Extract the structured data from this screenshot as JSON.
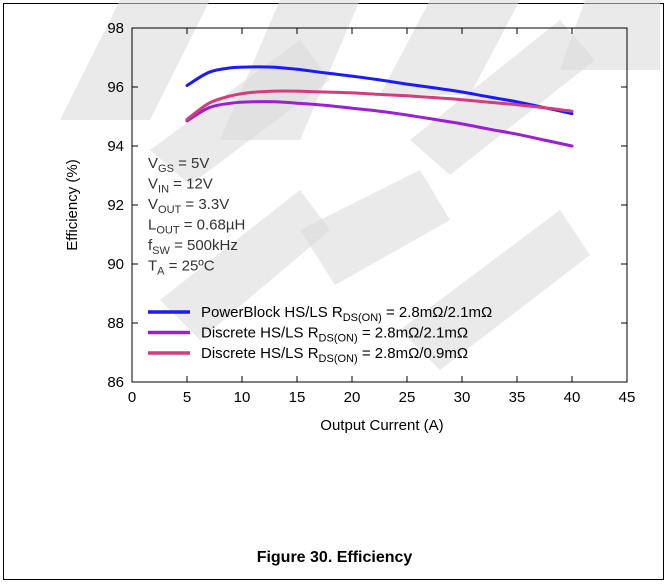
{
  "caption": "Figure 30. Efficiency",
  "watermark": "stamp graphic",
  "conditions": {
    "vgs": {
      "main": "V",
      "sub": "GS",
      "value": " = 5V"
    },
    "vin": {
      "main": "V",
      "sub": "IN",
      "value": " = 12V"
    },
    "vout": {
      "main": "V",
      "sub": "OUT",
      "value": " = 3.3V"
    },
    "lout": {
      "main": "L",
      "sub": "OUT",
      "value": " = 0.68µH"
    },
    "fsw": {
      "main": "f",
      "sub": "SW",
      "value": " = 500kHz"
    },
    "ta": {
      "main": "T",
      "sub": "A",
      "value": " = 25ºC"
    }
  },
  "chart_data": {
    "type": "line",
    "title": "",
    "xlabel": "Output Current (A)",
    "ylabel": "Efficiency (%)",
    "xlim": [
      0,
      45
    ],
    "ylim": [
      86,
      98
    ],
    "xticks": [
      "0",
      "5",
      "10",
      "15",
      "20",
      "25",
      "30",
      "35",
      "40",
      "45"
    ],
    "yticks": [
      "86",
      "88",
      "90",
      "92",
      "94",
      "96",
      "98"
    ],
    "grid": false,
    "legend_position": "lower-left",
    "series": [
      {
        "name_parts": {
          "pre": "PowerBlock  HS/LS R",
          "sub": "DS(ON)",
          "post": " = 2.8mΩ/2.1mΩ"
        },
        "color": "#1a1aff",
        "x": [
          5,
          7,
          9,
          11,
          13,
          15,
          17.5,
          20,
          22.5,
          25,
          27.5,
          30,
          32.5,
          35,
          37.5,
          40
        ],
        "y": [
          96.05,
          96.5,
          96.65,
          96.68,
          96.67,
          96.6,
          96.48,
          96.37,
          96.24,
          96.1,
          95.97,
          95.83,
          95.66,
          95.5,
          95.3,
          95.1
        ]
      },
      {
        "name_parts": {
          "pre": "Discrete  HS/LS R",
          "sub": "DS(ON)",
          "post": " = 2.8mΩ/2.1mΩ"
        },
        "color": "#9b1fd6",
        "x": [
          5,
          7,
          9,
          11,
          13,
          15,
          17.5,
          20,
          22.5,
          25,
          27.5,
          30,
          32.5,
          35,
          37.5,
          40
        ],
        "y": [
          94.85,
          95.3,
          95.45,
          95.5,
          95.5,
          95.45,
          95.38,
          95.28,
          95.18,
          95.05,
          94.9,
          94.75,
          94.57,
          94.4,
          94.2,
          94.0
        ]
      },
      {
        "name_parts": {
          "pre": "Discrete  HS/LS R",
          "sub": "DS(ON)",
          "post": " = 2.8mΩ/0.9mΩ"
        },
        "color": "#d63c7c",
        "x": [
          5,
          7,
          9,
          11,
          13,
          15,
          17.5,
          20,
          22.5,
          25,
          27.5,
          30,
          32.5,
          35,
          37.5,
          40
        ],
        "y": [
          94.9,
          95.45,
          95.7,
          95.82,
          95.86,
          95.86,
          95.83,
          95.8,
          95.75,
          95.7,
          95.64,
          95.57,
          95.48,
          95.4,
          95.3,
          95.18
        ]
      }
    ]
  }
}
